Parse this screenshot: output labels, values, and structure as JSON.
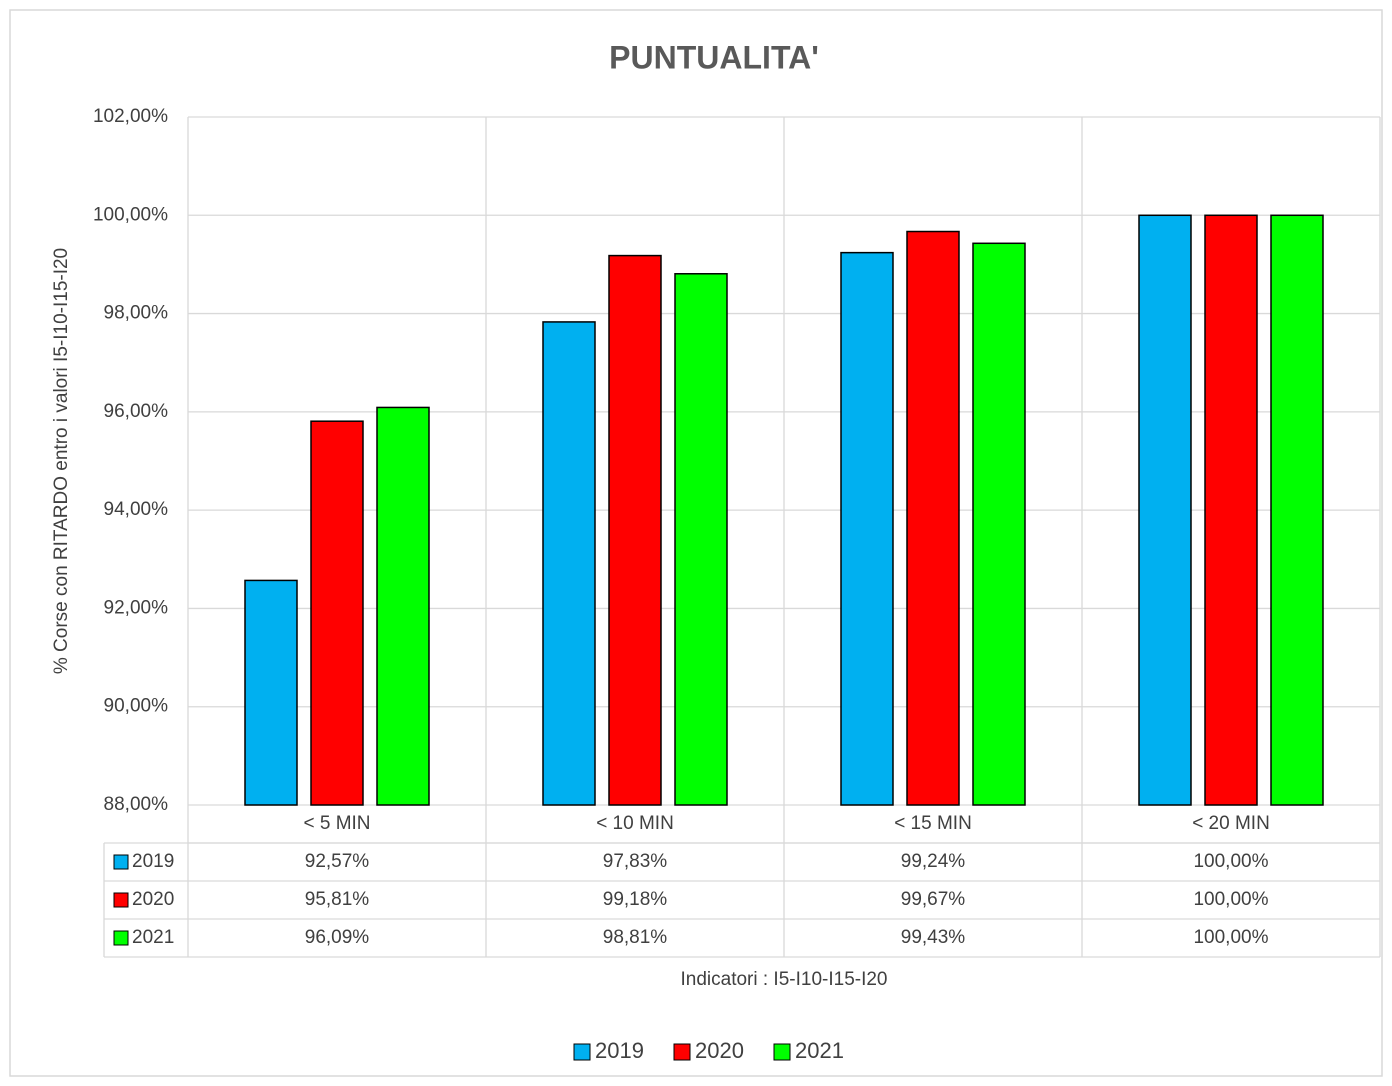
{
  "chart_data": {
    "type": "bar",
    "title": "PUNTUALITA'",
    "y_label": "% Corse con  RITARDO entro i valori I5-I10-I15-I20",
    "x_label": "Indicatori : I5-I10-I15-I20",
    "categories": [
      "< 5 MIN",
      "< 10 MIN",
      "< 15 MIN",
      "< 20 MIN"
    ],
    "series": [
      {
        "name": "2019",
        "color": "#00b0f0",
        "values": [
          92.57,
          97.83,
          99.24,
          100
        ],
        "value_labels": [
          "92,57%",
          "97,83%",
          "99,24%",
          "100,00%"
        ]
      },
      {
        "name": "2020",
        "color": "#ff0000",
        "values": [
          95.81,
          99.18,
          99.67,
          100
        ],
        "value_labels": [
          "95,81%",
          "99,18%",
          "99,67%",
          "100,00%"
        ]
      },
      {
        "name": "2021",
        "color": "#00ff00",
        "values": [
          96.09,
          98.81,
          99.43,
          100
        ],
        "value_labels": [
          "96,09%",
          "98,81%",
          "99,43%",
          "100,00%"
        ]
      }
    ],
    "ylim": [
      88,
      102
    ],
    "yticks": [
      {
        "value": 88,
        "label": "88,00%"
      },
      {
        "value": 90,
        "label": "90,00%"
      },
      {
        "value": 92,
        "label": "92,00%"
      },
      {
        "value": 94,
        "label": "94,00%"
      },
      {
        "value": 96,
        "label": "96,00%"
      },
      {
        "value": 98,
        "label": "98,00%"
      },
      {
        "value": 100,
        "label": "100,00%"
      },
      {
        "value": 102,
        "label": "102,00%"
      }
    ],
    "grid": true,
    "legend": "bottom",
    "data_table": true
  }
}
